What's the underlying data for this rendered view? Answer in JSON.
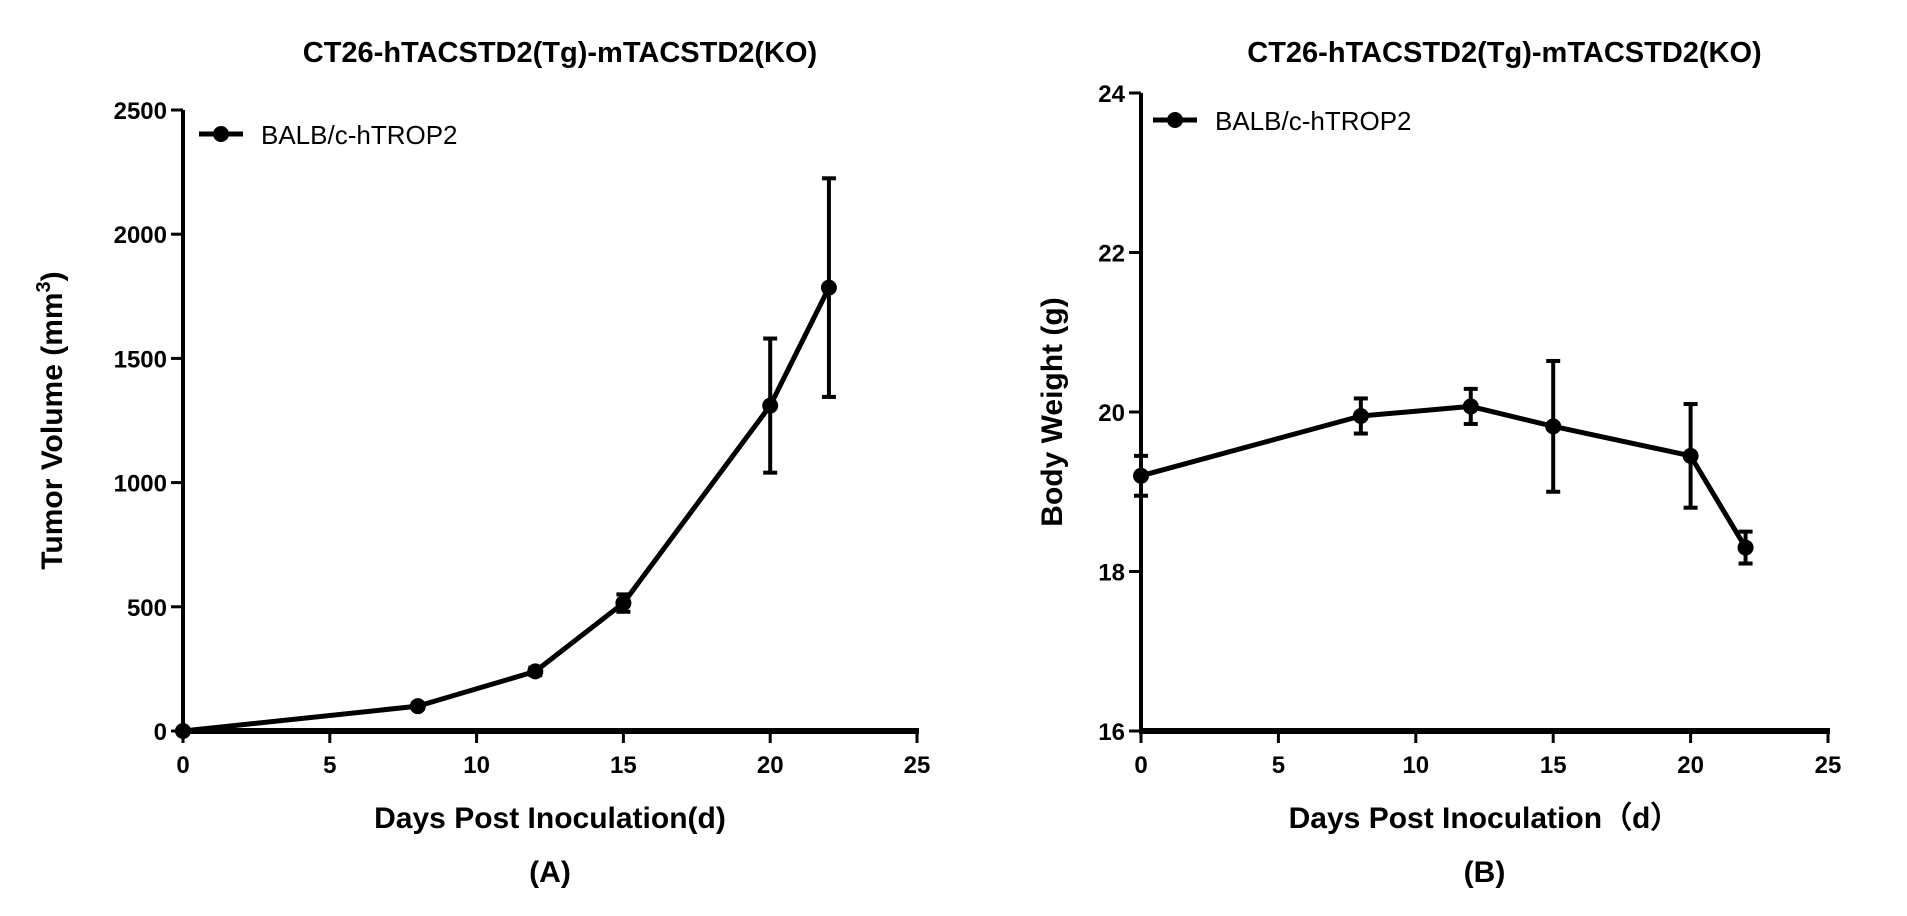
{
  "chart_data": [
    {
      "type": "line",
      "panel_label": "(A)",
      "title": "CT26-hTACSTD2(Tg)-mTACSTD2(KO)",
      "xlabel": "Days Post Inoculation(d)",
      "ylabel": "Tumor Volume (mm",
      "ylabel_sup": "3",
      "ylabel_end": ")",
      "xlim": [
        0,
        25
      ],
      "ylim": [
        0,
        2500
      ],
      "xticks": [
        0,
        5,
        10,
        15,
        20,
        25
      ],
      "yticks": [
        0,
        500,
        1000,
        1500,
        2000,
        2500
      ],
      "legend_position": "top-left",
      "grid": false,
      "color": "#000000",
      "series": [
        {
          "name": "BALB/c-hTROP2",
          "x": [
            0,
            8,
            12,
            15,
            20,
            22
          ],
          "y": [
            0,
            100,
            240,
            515,
            1310,
            1785
          ],
          "error": [
            0,
            10,
            15,
            35,
            270,
            440
          ]
        }
      ]
    },
    {
      "type": "line",
      "panel_label": "(B)",
      "title": "CT26-hTACSTD2(Tg)-mTACSTD2(KO)",
      "xlabel": "Days Post Inoculation（d）",
      "ylabel": "Body Weight (g)",
      "xlim": [
        0,
        25
      ],
      "ylim": [
        16,
        24
      ],
      "xticks": [
        0,
        5,
        10,
        15,
        20,
        25
      ],
      "yticks": [
        16,
        18,
        20,
        22,
        24
      ],
      "legend_position": "top-left",
      "grid": false,
      "color": "#000000",
      "series": [
        {
          "name": "BALB/c-hTROP2",
          "x": [
            0,
            8,
            12,
            15,
            20,
            22
          ],
          "y": [
            19.2,
            19.95,
            20.07,
            19.82,
            19.45,
            18.3
          ],
          "error": [
            0.25,
            0.22,
            0.22,
            0.82,
            0.65,
            0.2
          ]
        }
      ]
    }
  ]
}
